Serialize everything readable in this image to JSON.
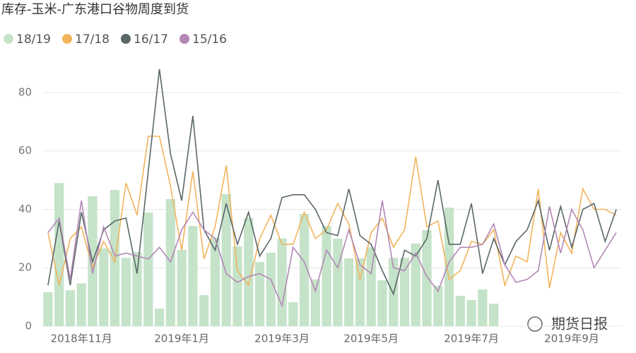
{
  "chart_data": {
    "type": "bar-line",
    "title": "库存-玉米-广东港口谷物周度到货",
    "categories": [
      null,
      null,
      null,
      "2018年11月",
      null,
      null,
      null,
      null,
      null,
      null,
      null,
      null,
      "2019年1月",
      null,
      null,
      null,
      null,
      null,
      null,
      null,
      null,
      "2019年3月",
      null,
      null,
      null,
      null,
      null,
      null,
      null,
      "2019年5月",
      null,
      null,
      null,
      null,
      null,
      null,
      null,
      null,
      "2019年7月",
      null,
      null,
      null,
      null,
      null,
      null,
      null,
      null,
      "2019年9月",
      null,
      null,
      null,
      null
    ],
    "series": [
      {
        "name": "18/19",
        "color": "#c5e3c9",
        "kind": "bar",
        "values": [
          11.6,
          49,
          12.3,
          14.7,
          44.5,
          26.6,
          46.6,
          23.4,
          25.4,
          38.9,
          6,
          43.5,
          26.1,
          34.3,
          10.6,
          30.2,
          45.2,
          27.3,
          37,
          22,
          25.1,
          30,
          8.2,
          38.4,
          16,
          34.3,
          30,
          23.2,
          23.2,
          27,
          15.7,
          23.4,
          23.4,
          28.3,
          32.9,
          13.8,
          40.6,
          10.4,
          8.9,
          12.6,
          7.7,
          null,
          null,
          null,
          null,
          null,
          null,
          null,
          null,
          null,
          null,
          null
        ]
      },
      {
        "name": "17/18",
        "color": "#f2b45c",
        "kind": "line",
        "values": [
          32,
          14,
          30,
          34,
          20,
          29,
          22,
          49,
          38,
          65,
          65,
          48,
          26,
          53,
          23,
          34,
          55,
          19,
          14,
          30,
          38,
          28,
          28,
          39,
          30,
          33,
          42,
          35,
          16,
          32,
          37,
          27,
          33,
          58,
          34,
          36,
          16,
          19,
          29,
          28,
          33,
          14,
          24,
          22,
          47,
          13,
          32,
          25,
          47,
          40,
          40,
          38
        ]
      },
      {
        "name": "16/17",
        "color": "#5a6768",
        "kind": "line",
        "values": [
          14,
          36,
          14,
          39,
          22,
          33,
          36,
          37,
          18,
          53,
          88,
          59,
          43,
          72,
          33,
          26,
          42,
          28,
          39,
          24,
          30,
          44,
          45,
          45,
          40,
          32,
          31,
          47,
          31,
          28,
          19,
          11,
          26,
          24,
          30,
          50,
          28,
          28,
          42,
          18,
          30,
          21,
          29,
          33,
          43,
          26,
          41,
          27,
          40,
          42,
          29,
          40
        ]
      },
      {
        "name": "15/16",
        "color": "#b387b6",
        "kind": "line",
        "values": [
          32,
          37,
          16,
          43,
          18,
          34,
          24,
          25,
          24,
          23,
          27,
          22,
          33,
          39,
          33,
          30,
          18,
          15,
          17,
          18,
          16,
          7,
          27,
          22,
          12,
          26,
          20,
          33,
          21,
          18,
          43,
          20,
          19,
          25,
          17,
          12,
          22,
          27,
          27,
          28,
          35,
          21,
          15,
          16,
          19,
          41,
          25,
          40,
          33,
          20,
          26,
          32
        ]
      }
    ],
    "ylim": [
      0,
      90
    ],
    "yticks": [
      0,
      20,
      40,
      60,
      80
    ],
    "grid": true
  },
  "watermark": "期货日报"
}
